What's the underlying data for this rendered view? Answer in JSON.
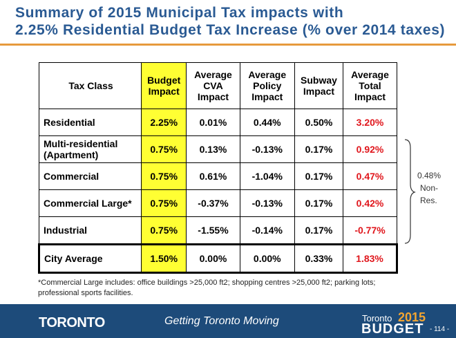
{
  "header": {
    "title": [
      "Summary of 2015 Municipal Tax impacts with",
      "2.25% Residential Budget Tax Increase (% over 2014 taxes)"
    ]
  },
  "table": {
    "columns": [
      "Tax Class",
      "Budget Impact",
      "Average CVA Impact",
      "Average Policy Impact",
      "Subway Impact",
      "Average Total Impact"
    ],
    "rows": [
      [
        "Residential",
        "2.25%",
        "0.01%",
        "0.44%",
        "0.50%",
        "3.20%"
      ],
      [
        "Multi-residential (Apartment)",
        "0.75%",
        "0.13%",
        "-0.13%",
        "0.17%",
        "0.92%"
      ],
      [
        "Commercial",
        "0.75%",
        "0.61%",
        "-1.04%",
        "0.17%",
        "0.47%"
      ],
      [
        "Commercial Large*",
        "0.75%",
        "-0.37%",
        "-0.13%",
        "0.17%",
        "0.42%"
      ],
      [
        "Industrial",
        "0.75%",
        "-1.55%",
        "-0.14%",
        "0.17%",
        "-0.77%"
      ]
    ],
    "total": [
      "City Average",
      "1.50%",
      "0.00%",
      "0.00%",
      "0.33%",
      "1.83%"
    ]
  },
  "bracket_note": {
    "value": "0.48%",
    "label": [
      "Non-",
      "Res."
    ]
  },
  "footnote": "*Commercial  Large includes: office buildings >25,000 ft2;  shopping centres >25,000 ft2; parking lots; professional sports facilities.",
  "footer": {
    "logo": "TORONTO",
    "tagline": "Getting Toronto Moving",
    "brand_city": "Toronto",
    "brand_year": "2015",
    "brand_word": "BUDGET",
    "page": "- 114 -"
  }
}
